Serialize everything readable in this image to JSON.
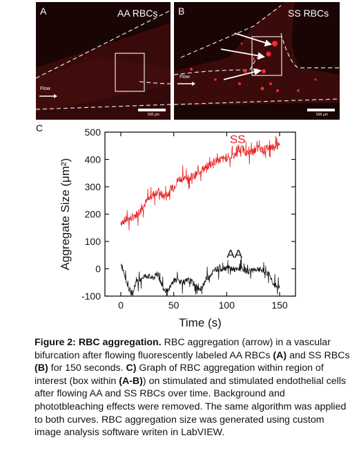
{
  "panels": {
    "a": {
      "letter": "A",
      "title": "AA RBCs",
      "flow": "Flow",
      "scale": "500 μm"
    },
    "b": {
      "letter": "B",
      "title": "SS RBCs",
      "flow": "Flow",
      "scale": "500 μm"
    }
  },
  "colors": {
    "ss": "#e8201f",
    "aa": "#111111",
    "tissue": "#4a0e0e",
    "cells": "#ff2a2a"
  },
  "chart_data": {
    "type": "line",
    "panel_letter": "C",
    "xlabel": "Time (s)",
    "ylabel": "Aggregate Size (μm²)",
    "xlim": [
      -15,
      165
    ],
    "ylim": [
      -100,
      500
    ],
    "xticks": [
      "0",
      "50",
      "100",
      "150"
    ],
    "xtick_values": [
      0,
      50,
      100,
      150
    ],
    "yticks": [
      "-100",
      "0",
      "100",
      "200",
      "300",
      "400",
      "500"
    ],
    "ytick_values": [
      -100,
      0,
      100,
      200,
      300,
      400,
      500
    ],
    "series": [
      {
        "name": "SS",
        "x": [
          0,
          5,
          10,
          15,
          20,
          25,
          30,
          35,
          40,
          45,
          50,
          55,
          60,
          65,
          70,
          75,
          80,
          85,
          90,
          95,
          100,
          105,
          110,
          115,
          120,
          125,
          130,
          135,
          140,
          145,
          150
        ],
        "y": [
          170,
          180,
          185,
          200,
          220,
          250,
          270,
          285,
          265,
          275,
          300,
          330,
          330,
          335,
          340,
          360,
          370,
          385,
          395,
          400,
          405,
          410,
          425,
          440,
          420,
          430,
          440,
          435,
          445,
          445,
          450
        ]
      },
      {
        "name": "AA",
        "x": [
          0,
          3,
          6,
          10,
          15,
          20,
          25,
          30,
          35,
          40,
          45,
          50,
          55,
          60,
          65,
          70,
          75,
          80,
          85,
          90,
          95,
          100,
          105,
          110,
          115,
          120,
          125,
          130,
          135,
          140,
          145,
          150
        ],
        "y": [
          20,
          -10,
          -60,
          -90,
          -50,
          -30,
          -25,
          -35,
          -20,
          -70,
          -85,
          -40,
          -45,
          -50,
          -40,
          -60,
          -80,
          -40,
          -20,
          0,
          0,
          5,
          0,
          -5,
          0,
          -10,
          -5,
          0,
          -10,
          -20,
          -60,
          -70
        ]
      }
    ],
    "annotations": [
      {
        "text": "SS",
        "x": 103,
        "y": 460
      },
      {
        "text": "AA",
        "x": 100,
        "y": 40
      }
    ]
  },
  "caption": {
    "label": "Figure 2: RBC aggregation.",
    "text1": " RBC aggregation (arrow) in a vascular bifurcation after flowing fluorescently labeled AA RBCs ",
    "refA": "(A)",
    "text2": " and SS RBCs ",
    "refB": "(B)",
    "text3": " for 150 seconds. ",
    "refC": "C)",
    "text4": " Graph of RBC aggregation within region of interest (box within ",
    "refAB": "(A-B)",
    "text5": ") on stimulated  and stimulated endothelial cells after flowing AA and SS RBCs over time. Background and phototbleaching effects were removed. The same algorithm was applied to both curves. RBC aggregation size was generated using custom image analysis software writen in LabVIEW."
  }
}
